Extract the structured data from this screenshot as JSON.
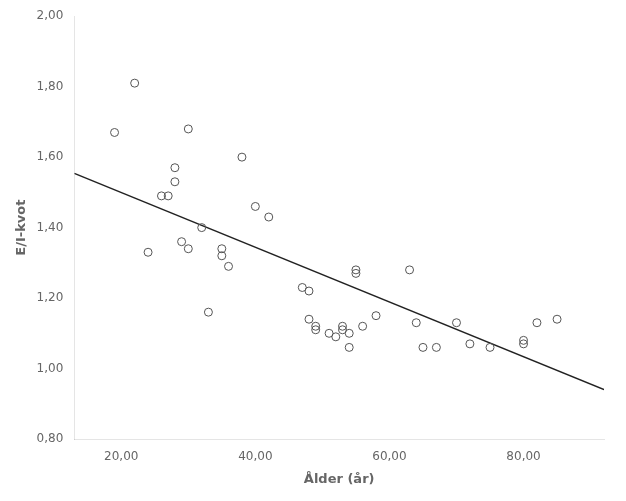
{
  "chart_data": {
    "type": "scatter",
    "xlabel": "Ålder (år)",
    "ylabel": "E/I-kvot",
    "series": [
      {
        "type": "scatter",
        "marker": "circle",
        "color": "#555555",
        "x": [
          19,
          22,
          24,
          26,
          27,
          28,
          28,
          29,
          30,
          30,
          32,
          33,
          35,
          35,
          36,
          38,
          40,
          42,
          47,
          48,
          48,
          49,
          49,
          51,
          52,
          53,
          53,
          54,
          54,
          55,
          55,
          56,
          58,
          63,
          64,
          65,
          67,
          70,
          72,
          75,
          80,
          80,
          82,
          85
        ],
        "values": [
          1.67,
          1.81,
          1.33,
          1.49,
          1.49,
          1.57,
          1.53,
          1.36,
          1.68,
          1.34,
          1.4,
          1.16,
          1.34,
          1.32,
          1.29,
          1.6,
          1.46,
          1.43,
          1.23,
          1.22,
          1.14,
          1.11,
          1.12,
          1.1,
          1.09,
          1.11,
          1.12,
          1.06,
          1.1,
          1.27,
          1.28,
          1.12,
          1.15,
          1.28,
          1.13,
          1.06,
          1.06,
          1.13,
          1.07,
          1.06,
          1.07,
          1.08,
          1.13,
          1.14
        ]
      },
      {
        "type": "line",
        "color": "#222222",
        "x": [
          13,
          92
        ],
        "values": [
          1.554,
          0.94
        ]
      }
    ],
    "xlim": [
      13,
      92
    ],
    "ylim": [
      0.8,
      2.0
    ],
    "xticks": [
      {
        "value": 20,
        "label": "20,00"
      },
      {
        "value": 40,
        "label": "40,00"
      },
      {
        "value": 60,
        "label": "60,00"
      },
      {
        "value": 80,
        "label": "80,00"
      }
    ],
    "yticks": [
      {
        "value": 0.8,
        "label": "0,80"
      },
      {
        "value": 1.0,
        "label": "1,00"
      },
      {
        "value": 1.2,
        "label": "1,20"
      },
      {
        "value": 1.4,
        "label": "1,40"
      },
      {
        "value": 1.6,
        "label": "1,60"
      },
      {
        "value": 1.8,
        "label": "1,80"
      },
      {
        "value": 2.0,
        "label": "2,00"
      }
    ],
    "grid": false
  }
}
